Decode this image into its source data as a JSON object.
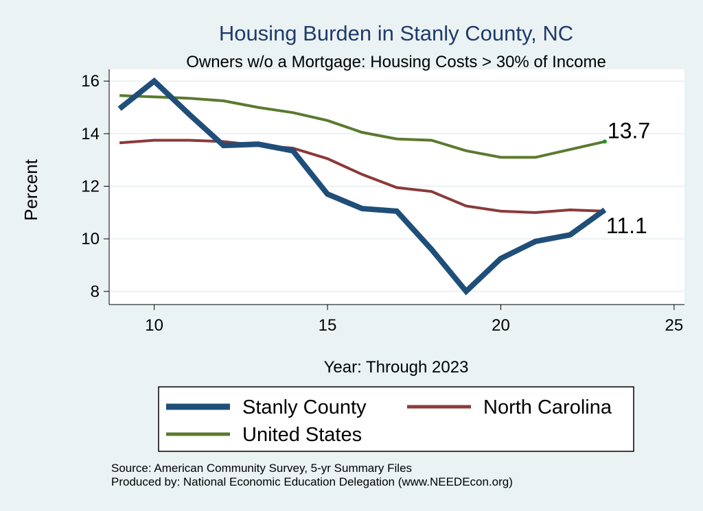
{
  "chart_data": {
    "type": "line",
    "title": "Housing Burden in Stanly County, NC",
    "subtitle": "Owners w/o a Mortgage: Housing Costs > 30% of Income",
    "xlabel": "Year: Through 2023",
    "ylabel": "Percent",
    "xlim": [
      8.7,
      25.3
    ],
    "ylim": [
      7.5,
      16.45
    ],
    "xticks": [
      10,
      15,
      20,
      25
    ],
    "yticks": [
      8,
      10,
      12,
      14,
      16
    ],
    "grid": true,
    "legend_position": "bottom",
    "series": [
      {
        "name": "Stanly County",
        "color": "#1f4e79",
        "x": [
          9,
          10,
          11,
          12,
          13,
          14,
          15,
          16,
          17,
          18,
          19,
          20,
          21,
          22,
          23
        ],
        "values": [
          14.95,
          16.0,
          14.75,
          13.55,
          13.6,
          13.35,
          11.7,
          11.15,
          11.05,
          9.6,
          8.0,
          9.25,
          9.9,
          10.15,
          11.1
        ]
      },
      {
        "name": "North Carolina",
        "color": "#8b3a3a",
        "x": [
          9,
          10,
          11,
          12,
          13,
          14,
          15,
          16,
          17,
          18,
          19,
          20,
          21,
          22,
          23
        ],
        "values": [
          13.65,
          13.75,
          13.75,
          13.7,
          13.55,
          13.45,
          13.05,
          12.45,
          11.95,
          11.8,
          11.25,
          11.05,
          11.0,
          11.1,
          11.05
        ]
      },
      {
        "name": "United States",
        "color": "#5a7a2e",
        "x": [
          9,
          10,
          11,
          12,
          13,
          14,
          15,
          16,
          17,
          18,
          19,
          20,
          21,
          22,
          23
        ],
        "values": [
          15.45,
          15.4,
          15.35,
          15.25,
          15.0,
          14.8,
          14.5,
          14.05,
          13.8,
          13.75,
          13.35,
          13.1,
          13.1,
          13.4,
          13.7
        ]
      }
    ],
    "annotations": [
      {
        "text": "13.7",
        "x": 23,
        "y": 13.7
      },
      {
        "text": "11.1",
        "x": 23,
        "y": 11.1
      }
    ]
  },
  "source_note": "Source: American Community Survey, 5-yr Summary Files",
  "producer_note": "Produced by: National Economic Education Delegation (www.NEEDEcon.org)"
}
